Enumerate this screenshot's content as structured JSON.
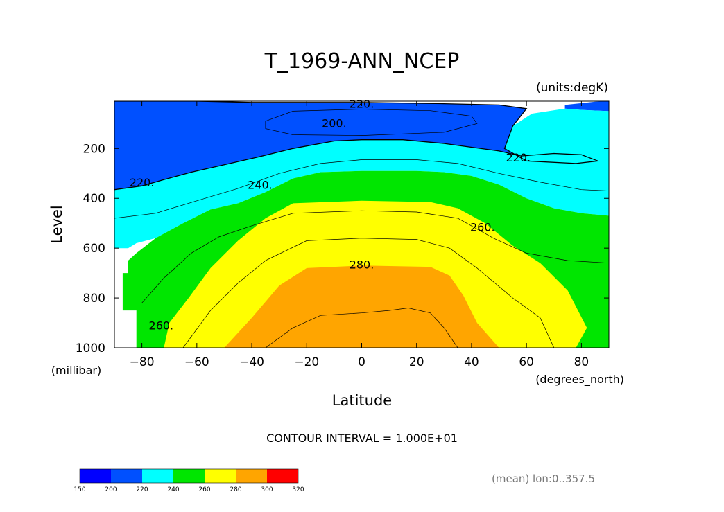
{
  "chart_data": {
    "type": "contour",
    "title": "T_1969-ANN_NCEP",
    "units_label": "(units:degK)",
    "xlabel": "Latitude",
    "x_units": "(degrees_north)",
    "ylabel": "Level",
    "y_units": "(millibar)",
    "xlim": [
      -90,
      90
    ],
    "ylim": [
      1000,
      10
    ],
    "y_inverted": true,
    "x_ticks": [
      -80,
      -60,
      -40,
      -20,
      0,
      20,
      40,
      60,
      80
    ],
    "x_tick_labels": [
      "−80",
      "−60",
      "−40",
      "−20",
      "0",
      "20",
      "40",
      "60",
      "80"
    ],
    "y_ticks": [
      200,
      400,
      600,
      800,
      1000
    ],
    "y_tick_labels": [
      "200",
      "400",
      "600",
      "800",
      "1000"
    ],
    "contour_interval_text": "CONTOUR INTERVAL = 1.000E+01",
    "contour_labels": [
      {
        "text": "220.",
        "x": 0,
        "y": 20
      },
      {
        "text": "200.",
        "x": -10,
        "y": 98
      },
      {
        "text": "220.",
        "x": 57,
        "y": 235
      },
      {
        "text": "220.",
        "x": -80,
        "y": 335
      },
      {
        "text": "240.",
        "x": -37,
        "y": 345
      },
      {
        "text": "260.",
        "x": 44,
        "y": 515
      },
      {
        "text": "280.",
        "x": 0,
        "y": 665
      },
      {
        "text": "260.",
        "x": -73,
        "y": 910
      }
    ],
    "levels": [
      150,
      200,
      220,
      240,
      260,
      280,
      300,
      320
    ],
    "level_labels": [
      "150",
      "200",
      "220",
      "240",
      "260",
      "280",
      "300",
      "320"
    ],
    "fill_colors": [
      "#0000ff",
      "#0050ff",
      "#00ffff",
      "#00e600",
      "#ffff00",
      "#ffa500",
      "#ff0000"
    ],
    "regions": [
      {
        "name": "below-200",
        "points": [
          [
            -18,
            100
          ],
          [
            -10,
            80
          ],
          [
            5,
            80
          ],
          [
            18,
            90
          ],
          [
            25,
            100
          ],
          [
            15,
            115
          ],
          [
            0,
            118
          ],
          [
            -12,
            115
          ]
        ]
      },
      {
        "name": "200-220-high",
        "points": [
          [
            -90,
            365
          ],
          [
            -80,
            350
          ],
          [
            -72,
            325
          ],
          [
            -62,
            295
          ],
          [
            -50,
            265
          ],
          [
            -38,
            235
          ],
          [
            -25,
            200
          ],
          [
            -10,
            170
          ],
          [
            0,
            165
          ],
          [
            15,
            165
          ],
          [
            30,
            180
          ],
          [
            40,
            195
          ],
          [
            50,
            210
          ],
          [
            58,
            230
          ],
          [
            70,
            220
          ],
          [
            80,
            225
          ],
          [
            86,
            250
          ],
          [
            78,
            260
          ],
          [
            60,
            250
          ],
          [
            52,
            200
          ],
          [
            55,
            110
          ],
          [
            60,
            40
          ],
          [
            50,
            25
          ],
          [
            30,
            20
          ],
          [
            0,
            15
          ],
          [
            -40,
            15
          ],
          [
            -60,
            10
          ],
          [
            -90,
            10
          ]
        ]
      },
      {
        "name": "200-220-arctic",
        "points": [
          [
            74,
            25
          ],
          [
            85,
            12
          ],
          [
            90,
            10
          ],
          [
            90,
            50
          ],
          [
            80,
            45
          ],
          [
            74,
            40
          ]
        ]
      },
      {
        "name": "220-240",
        "points": [
          [
            -90,
            600
          ],
          [
            -85,
            600
          ],
          [
            -82,
            580
          ],
          [
            -75,
            560
          ],
          [
            -65,
            500
          ],
          [
            -55,
            445
          ],
          [
            -45,
            420
          ],
          [
            -35,
            375
          ],
          [
            -25,
            320
          ],
          [
            -15,
            295
          ],
          [
            0,
            290
          ],
          [
            20,
            290
          ],
          [
            30,
            295
          ],
          [
            40,
            310
          ],
          [
            50,
            345
          ],
          [
            60,
            400
          ],
          [
            70,
            440
          ],
          [
            80,
            460
          ],
          [
            90,
            470
          ],
          [
            90,
            50
          ],
          [
            80,
            45
          ],
          [
            74,
            40
          ],
          [
            62,
            60
          ],
          [
            55,
            110
          ],
          [
            52,
            200
          ],
          [
            60,
            250
          ],
          [
            78,
            260
          ],
          [
            86,
            250
          ],
          [
            80,
            225
          ],
          [
            70,
            220
          ],
          [
            58,
            230
          ],
          [
            50,
            210
          ],
          [
            40,
            195
          ],
          [
            30,
            180
          ],
          [
            15,
            165
          ],
          [
            0,
            165
          ],
          [
            -10,
            170
          ],
          [
            -25,
            200
          ],
          [
            -38,
            235
          ],
          [
            -50,
            265
          ],
          [
            -62,
            295
          ],
          [
            -72,
            325
          ],
          [
            -80,
            350
          ],
          [
            -90,
            365
          ]
        ]
      },
      {
        "name": "240-260",
        "points": [
          [
            -82,
            1000
          ],
          [
            -82,
            850
          ],
          [
            -87,
            850
          ],
          [
            -87,
            700
          ],
          [
            -85,
            700
          ],
          [
            -85,
            650
          ],
          [
            -82,
            620
          ],
          [
            -75,
            560
          ],
          [
            -65,
            500
          ],
          [
            -55,
            445
          ],
          [
            -45,
            420
          ],
          [
            -35,
            375
          ],
          [
            -25,
            320
          ],
          [
            -15,
            295
          ],
          [
            0,
            290
          ],
          [
            20,
            290
          ],
          [
            30,
            295
          ],
          [
            40,
            310
          ],
          [
            50,
            345
          ],
          [
            60,
            400
          ],
          [
            70,
            440
          ],
          [
            80,
            460
          ],
          [
            90,
            470
          ],
          [
            90,
            1000
          ]
        ]
      },
      {
        "name": "260-280",
        "points": [
          [
            -72,
            1000
          ],
          [
            -70,
            900
          ],
          [
            -63,
            800
          ],
          [
            -55,
            680
          ],
          [
            -45,
            570
          ],
          [
            -35,
            480
          ],
          [
            -25,
            420
          ],
          [
            0,
            410
          ],
          [
            25,
            415
          ],
          [
            35,
            440
          ],
          [
            45,
            500
          ],
          [
            55,
            590
          ],
          [
            65,
            660
          ],
          [
            75,
            770
          ],
          [
            82,
            920
          ],
          [
            78,
            1000
          ]
        ]
      },
      {
        "name": "280-300",
        "points": [
          [
            -50,
            1000
          ],
          [
            -40,
            880
          ],
          [
            -30,
            750
          ],
          [
            -20,
            680
          ],
          [
            0,
            670
          ],
          [
            25,
            675
          ],
          [
            32,
            710
          ],
          [
            37,
            790
          ],
          [
            42,
            900
          ],
          [
            50,
            1000
          ]
        ]
      }
    ],
    "contour_lines": [
      {
        "level": 210,
        "points": [
          [
            -35,
            90
          ],
          [
            -25,
            50
          ],
          [
            0,
            42
          ],
          [
            25,
            48
          ],
          [
            40,
            70
          ],
          [
            42,
            100
          ],
          [
            30,
            135
          ],
          [
            0,
            148
          ],
          [
            -25,
            145
          ],
          [
            -35,
            120
          ],
          [
            -35,
            90
          ]
        ]
      },
      {
        "level": 220,
        "points": [
          [
            -90,
            365
          ],
          [
            -80,
            350
          ],
          [
            -72,
            325
          ],
          [
            -62,
            295
          ],
          [
            -50,
            265
          ],
          [
            -38,
            235
          ],
          [
            -25,
            200
          ],
          [
            -10,
            170
          ],
          [
            0,
            165
          ],
          [
            15,
            165
          ],
          [
            30,
            180
          ],
          [
            40,
            195
          ],
          [
            50,
            210
          ],
          [
            58,
            230
          ],
          [
            70,
            220
          ],
          [
            80,
            225
          ],
          [
            86,
            250
          ],
          [
            78,
            260
          ],
          [
            60,
            250
          ],
          [
            52,
            200
          ],
          [
            55,
            110
          ],
          [
            60,
            40
          ],
          [
            50,
            25
          ],
          [
            30,
            20
          ],
          [
            0,
            15
          ],
          [
            -40,
            15
          ],
          [
            -60,
            10
          ],
          [
            -90,
            10
          ]
        ]
      },
      {
        "level": 230,
        "points": [
          [
            -90,
            480
          ],
          [
            -75,
            460
          ],
          [
            -60,
            410
          ],
          [
            -45,
            360
          ],
          [
            -30,
            300
          ],
          [
            -15,
            260
          ],
          [
            0,
            245
          ],
          [
            20,
            245
          ],
          [
            35,
            260
          ],
          [
            50,
            300
          ],
          [
            65,
            335
          ],
          [
            80,
            365
          ],
          [
            90,
            370
          ]
        ]
      },
      {
        "level": 250,
        "points": [
          [
            -80,
            820
          ],
          [
            -72,
            720
          ],
          [
            -62,
            620
          ],
          [
            -52,
            555
          ],
          [
            -40,
            510
          ],
          [
            -25,
            460
          ],
          [
            0,
            450
          ],
          [
            20,
            455
          ],
          [
            35,
            480
          ],
          [
            48,
            560
          ],
          [
            60,
            620
          ],
          [
            75,
            650
          ],
          [
            90,
            660
          ]
        ]
      },
      {
        "level": 270,
        "points": [
          [
            -65,
            1000
          ],
          [
            -55,
            850
          ],
          [
            -45,
            740
          ],
          [
            -35,
            650
          ],
          [
            -20,
            570
          ],
          [
            0,
            560
          ],
          [
            20,
            565
          ],
          [
            32,
            600
          ],
          [
            42,
            680
          ],
          [
            55,
            800
          ],
          [
            65,
            880
          ],
          [
            70,
            1000
          ]
        ]
      },
      {
        "level": 290,
        "points": [
          [
            -35,
            1000
          ],
          [
            -25,
            920
          ],
          [
            -15,
            870
          ],
          [
            0,
            860
          ],
          [
            10,
            850
          ],
          [
            17,
            840
          ],
          [
            25,
            860
          ],
          [
            30,
            920
          ],
          [
            35,
            1000
          ]
        ]
      }
    ],
    "colorbar": {
      "orientation": "horizontal",
      "placement": "bottom-left"
    },
    "annotations": [
      {
        "text": "(mean) lon:0..357.5",
        "placement": "bottom-right"
      }
    ]
  }
}
